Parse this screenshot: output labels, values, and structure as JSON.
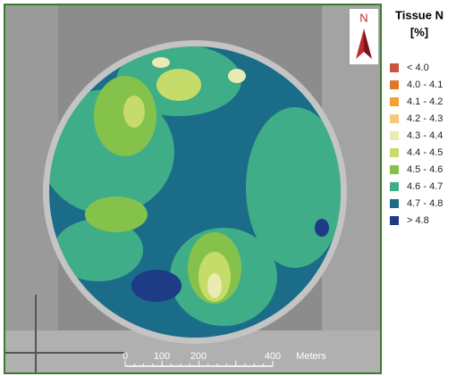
{
  "legend": {
    "title_lines": [
      "Tissue N",
      "[%]"
    ],
    "items": [
      {
        "label": "< 4.0",
        "color": "#c9553f"
      },
      {
        "label": "4.0 - 4.1",
        "color": "#e0782c"
      },
      {
        "label": "4.1 - 4.2",
        "color": "#f0a232"
      },
      {
        "label": "4.2 - 4.3",
        "color": "#f7c77c"
      },
      {
        "label": "4.3 - 4.4",
        "color": "#e9ebb3"
      },
      {
        "label": "4.4 - 4.5",
        "color": "#c5dc6a"
      },
      {
        "label": "4.5 - 4.6",
        "color": "#84c24c"
      },
      {
        "label": "4.6 - 4.7",
        "color": "#3fae88"
      },
      {
        "label": "4.7 - 4.8",
        "color": "#1a6c88"
      },
      {
        "label": "> 4.8",
        "color": "#1e3b86"
      }
    ]
  },
  "north_label": "N",
  "scale_bar": {
    "ticks": [
      "0",
      "100",
      "200",
      "400"
    ],
    "unit": "Meters"
  }
}
